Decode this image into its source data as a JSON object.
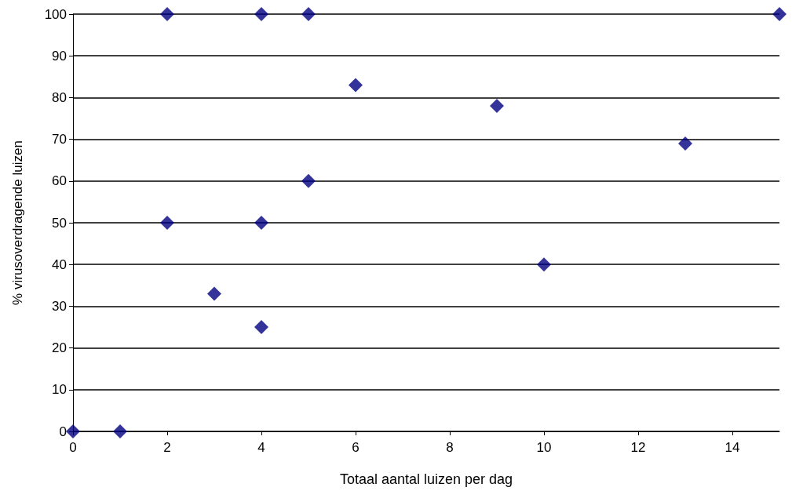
{
  "chart_data": {
    "type": "scatter",
    "xlabel": "Totaal aantal luizen per dag",
    "ylabel": "% virusoverdragende luizen",
    "x": [
      0,
      1,
      2,
      2,
      3,
      4,
      4,
      4,
      5,
      5,
      6,
      9,
      10,
      13,
      15
    ],
    "series": [
      {
        "color": "#000080",
        "values": [
          0,
          0,
          100,
          50,
          33,
          100,
          50,
          25,
          100,
          60,
          83,
          78,
          40,
          69,
          100
        ]
      }
    ],
    "xlim": [
      0,
      15
    ],
    "xticks": [
      0,
      2,
      4,
      6,
      8,
      10,
      12,
      14
    ],
    "ylim": [
      0,
      100
    ],
    "yticks": [
      0,
      10,
      20,
      30,
      40,
      50,
      60,
      70,
      80,
      90,
      100
    ],
    "grid": "y",
    "marker": "diamond"
  }
}
